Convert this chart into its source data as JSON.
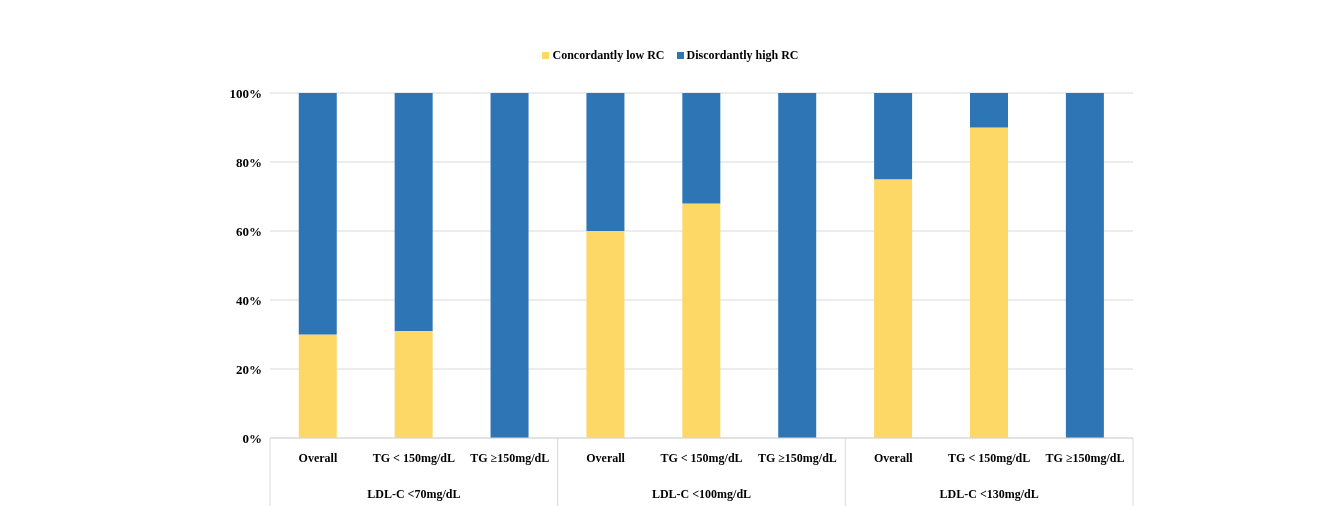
{
  "chart_data": {
    "type": "bar",
    "stacked": true,
    "categories": [
      "Overall",
      "TG < 150mg/dL",
      "TG ≥150mg/dL",
      "Overall",
      "TG < 150mg/dL",
      "TG ≥150mg/dL",
      "Overall",
      "TG < 150mg/dL",
      "TG ≥150mg/dL"
    ],
    "series": [
      {
        "name": "Concordantly low RC",
        "color": "#fdd866",
        "values": [
          30,
          31,
          0,
          60,
          68,
          0,
          75,
          90,
          0
        ]
      },
      {
        "name": "Discordantly high RC",
        "color": "#2e75b6",
        "values": [
          70,
          69,
          100,
          40,
          32,
          100,
          25,
          10,
          100
        ]
      }
    ],
    "ylim": [
      0,
      100
    ],
    "yticks": [
      {
        "value": 0,
        "label": "0%"
      },
      {
        "value": 20,
        "label": "20%"
      },
      {
        "value": 40,
        "label": "40%"
      },
      {
        "value": 60,
        "label": "60%"
      },
      {
        "value": 80,
        "label": "80%"
      },
      {
        "value": 100,
        "label": "100%"
      }
    ],
    "grid": "y",
    "legend": "top",
    "annotations": [
      "LDL-C <70mg/dL",
      "LDL-C <100mg/dL",
      "LDL-C <130mg/dL"
    ]
  }
}
